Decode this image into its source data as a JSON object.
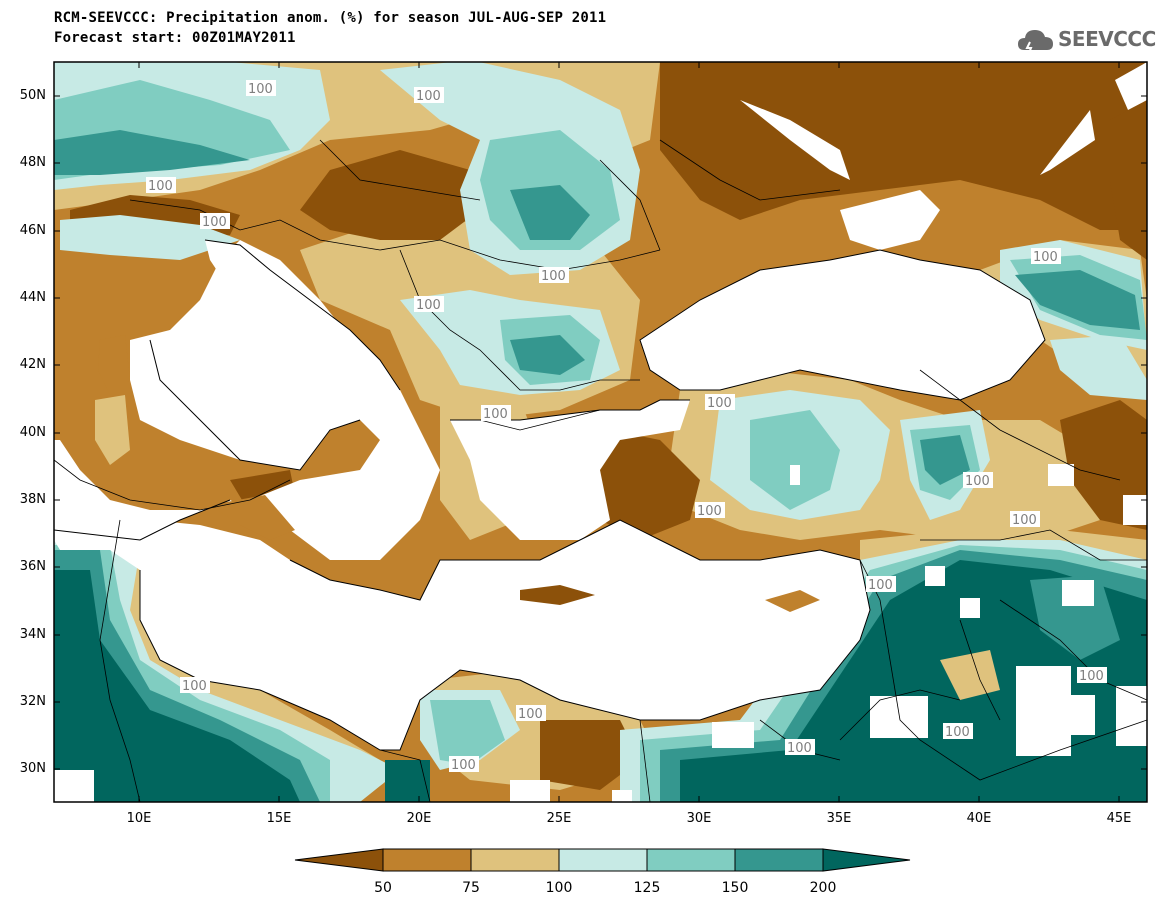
{
  "title_line1": "RCM-SEEVCCC: Precipitation anom. (%) for season JUL-AUG-SEP 2011",
  "title_line2": "Forecast start: 00Z01MAY2011",
  "logo_text": "SEEVCCC",
  "lat_labels": [
    "50N",
    "48N",
    "46N",
    "44N",
    "42N",
    "40N",
    "38N",
    "36N",
    "34N",
    "32N",
    "30N"
  ],
  "lon_labels": [
    "10E",
    "15E",
    "20E",
    "25E",
    "30E",
    "35E",
    "40E",
    "45E"
  ],
  "contour_label": "100",
  "colorbar": {
    "ticks": [
      "50",
      "75",
      "100",
      "125",
      "150",
      "200"
    ],
    "colors": [
      "#8c510a",
      "#bf812d",
      "#dfc27d",
      "#c7eae5",
      "#80cdc1",
      "#35978f",
      "#01665e"
    ]
  },
  "map_colors": {
    "sea": "#ffffff",
    "below_50": "#8c510a",
    "50_75": "#bf812d",
    "75_100": "#dfc27d",
    "100_125": "#c7eae5",
    "125_150": "#80cdc1",
    "150_200": "#35978f",
    "above_200": "#01665e"
  }
}
